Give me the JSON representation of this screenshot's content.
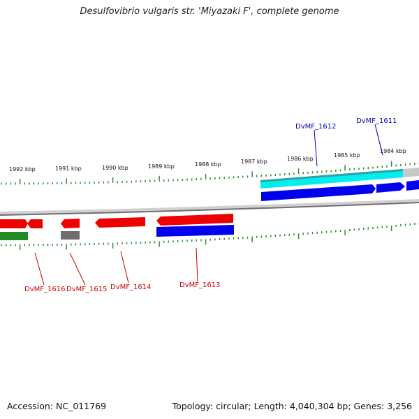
{
  "title": "Desulfovibrio vulgaris str. 'Miyazaki F', complete genome",
  "footer": {
    "accession": "Accession: NC_011769",
    "summary": "Topology: circular; Length: 4,040,304 bp; Genes: 3,256"
  },
  "colors": {
    "backbone": "#8a8a8a",
    "tick": "#2e8b2e",
    "red_gene": "#ee0000",
    "blue_gene": "#0000ee",
    "cyan_gene": "#00eeee",
    "green_gene": "#228b22",
    "gray_gene": "#777777",
    "label_blue": "#0000bb",
    "label_red": "#cc0000"
  },
  "kbp_labels": [
    "1992 kbp",
    "1991 kbp",
    "1990 kbp",
    "1989 kbp",
    "1988 kbp",
    "1987 kbp",
    "1986 kbp",
    "1985 kbp",
    "1984 kbp"
  ],
  "gene_labels": {
    "top": [
      "DvMF_1612",
      "DvMF_1611"
    ],
    "bottom": [
      "DvMF_1616",
      "DvMF_1615",
      "DvMF_1614",
      "DvMF_1613"
    ]
  }
}
